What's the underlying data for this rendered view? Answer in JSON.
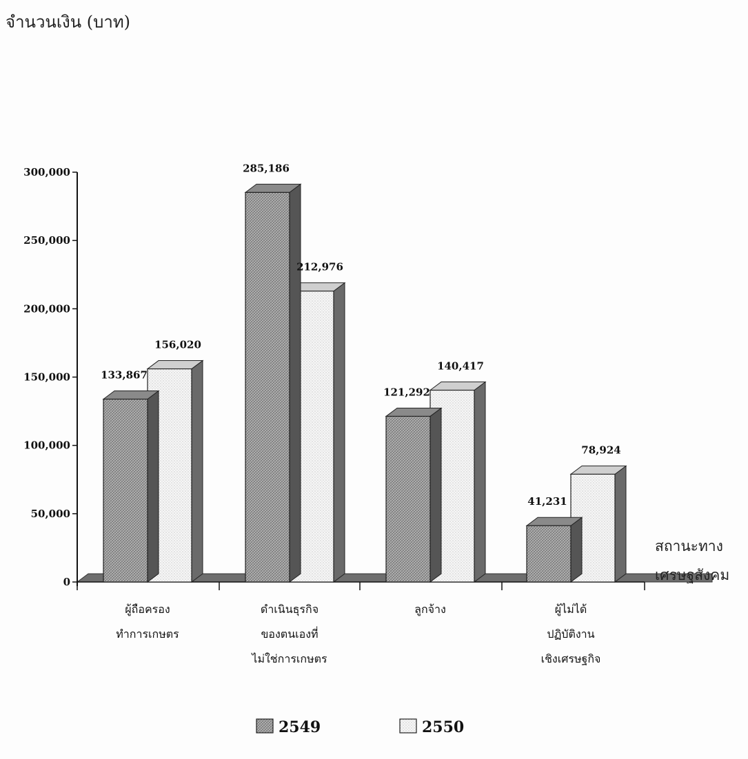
{
  "chart_data": {
    "type": "bar",
    "ylabel": "จำนวนเงิน (บาท)",
    "xlabel": [
      "สถานะทาง",
      "เศรษฐสังคม"
    ],
    "ylim": [
      0,
      300000
    ],
    "yticks": [
      0,
      50000,
      100000,
      150000,
      200000,
      250000,
      300000
    ],
    "ytick_labels": [
      "0",
      "50,000",
      "100,000",
      "150,000",
      "200,000",
      "250,000",
      "300,000"
    ],
    "categories": [
      [
        "ผู้ถือครอง",
        "ทำการเกษตร"
      ],
      [
        "ดำเนินธุรกิจ",
        "ของตนเองที่",
        "ไม่ใช่การเกษตร"
      ],
      [
        "ลูกจ้าง"
      ],
      [
        "ผู้ไม่ได้",
        "ปฏิบัติงาน",
        "เชิงเศรษฐกิจ"
      ]
    ],
    "series": [
      {
        "name": "2549",
        "values": [
          133867,
          285186,
          121292,
          41231
        ],
        "labels": [
          "133,867",
          "285,186",
          "121,292",
          "41,231"
        ],
        "color": "#9a9a9a",
        "side_color": "#555555",
        "top_color": "#8a8a8a"
      },
      {
        "name": "2550",
        "values": [
          156020,
          212976,
          140417,
          78924
        ],
        "labels": [
          "156,020",
          "212,976",
          "140,417",
          "78,924"
        ],
        "color": "#f4f4f4",
        "side_color": "#6a6a6a",
        "top_color": "#cfcfcf"
      }
    ],
    "grid": false,
    "legend_position": "bottom-center",
    "floor_color": "#6e6e6e"
  }
}
